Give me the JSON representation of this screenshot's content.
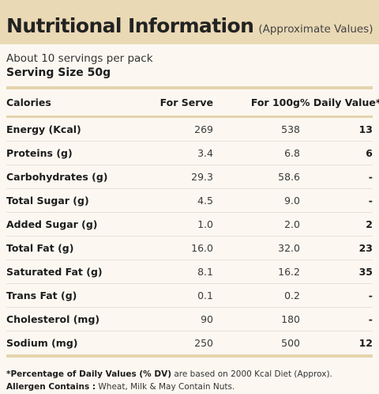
{
  "header": {
    "title": "Nutritional Information",
    "subtitle": "(Approximate Values)"
  },
  "servings_text": "About 10 servings per pack",
  "serving_size": "Serving Size 50g",
  "table": {
    "columns": [
      "Calories",
      "For Serve",
      "For 100g",
      "% Daily Value*"
    ],
    "rows": [
      {
        "name": "Energy (Kcal)",
        "serve": "269",
        "per100": "538",
        "dv": "13"
      },
      {
        "name": "Proteins (g)",
        "serve": "3.4",
        "per100": "6.8",
        "dv": "6"
      },
      {
        "name": "Carbohydrates (g)",
        "serve": "29.3",
        "per100": "58.6",
        "dv": "-"
      },
      {
        "name": "Total Sugar (g)",
        "serve": "4.5",
        "per100": "9.0",
        "dv": "-"
      },
      {
        "name": "Added Sugar (g)",
        "serve": "1.0",
        "per100": "2.0",
        "dv": "2"
      },
      {
        "name": "Total Fat (g)",
        "serve": "16.0",
        "per100": "32.0",
        "dv": "23"
      },
      {
        "name": "Saturated Fat (g)",
        "serve": "8.1",
        "per100": "16.2",
        "dv": "35"
      },
      {
        "name": "Trans Fat (g)",
        "serve": "0.1",
        "per100": "0.2",
        "dv": "-"
      },
      {
        "name": "Cholesterol (mg)",
        "serve": "90",
        "per100": "180",
        "dv": "-"
      },
      {
        "name": "Sodium (mg)",
        "serve": "250",
        "per100": "500",
        "dv": "12"
      }
    ]
  },
  "footnote": {
    "dv_bold": "*Percentage of Daily Values (% DV)",
    "dv_rest": " are based on 2000 Kcal Diet (Approx).",
    "allergen_bold": "Allergen Contains :",
    "allergen_rest": " Wheat, Milk &  May Contain Nuts."
  },
  "colors": {
    "header_bg": "#e9d9b5",
    "panel_bg": "#fcf8f1",
    "rule": "#e4d4ae"
  }
}
